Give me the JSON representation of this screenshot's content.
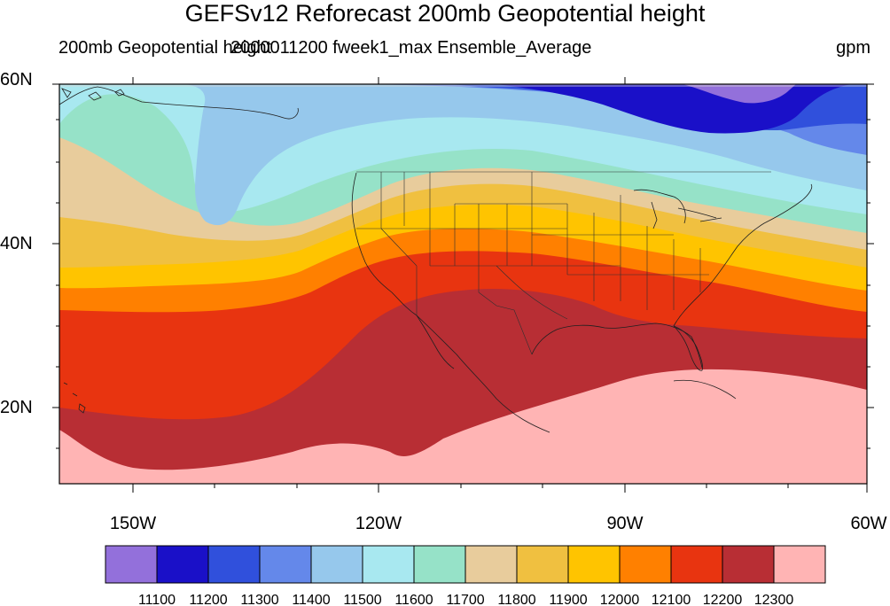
{
  "title": "GEFSv12 Reforecast 200mb Geopotential height",
  "subtitle_left": "200mb Geopotential height",
  "subtitle_center": "2000011200 fweek1_max Ensemble_Average",
  "units": "gpm",
  "lat_labels": [
    "60N",
    "40N",
    "20N"
  ],
  "lon_labels": [
    "150W",
    "120W",
    "90W",
    "60W"
  ],
  "colorbar": {
    "colors": [
      "#9370db",
      "#1a10c8",
      "#3050dc",
      "#6488ea",
      "#96c8ec",
      "#a8e8f0",
      "#96e2c8",
      "#e8cc9c",
      "#f0c040",
      "#ffc400",
      "#ff8000",
      "#e83410",
      "#b82e34",
      "#ffb4b4"
    ],
    "labels": [
      "11100",
      "11200",
      "11300",
      "11400",
      "11500",
      "11600",
      "11700",
      "11800",
      "11900",
      "12000",
      "12100",
      "12200",
      "12300"
    ]
  },
  "chart_data": {
    "type": "filled-contour-map",
    "variable": "200mb Geopotential height",
    "units": "gpm",
    "lat_range": [
      10,
      60
    ],
    "lon_range": [
      -160,
      -60
    ],
    "contour_levels": [
      11100,
      11200,
      11300,
      11400,
      11500,
      11600,
      11700,
      11800,
      11900,
      12000,
      12100,
      12200,
      12300
    ]
  }
}
